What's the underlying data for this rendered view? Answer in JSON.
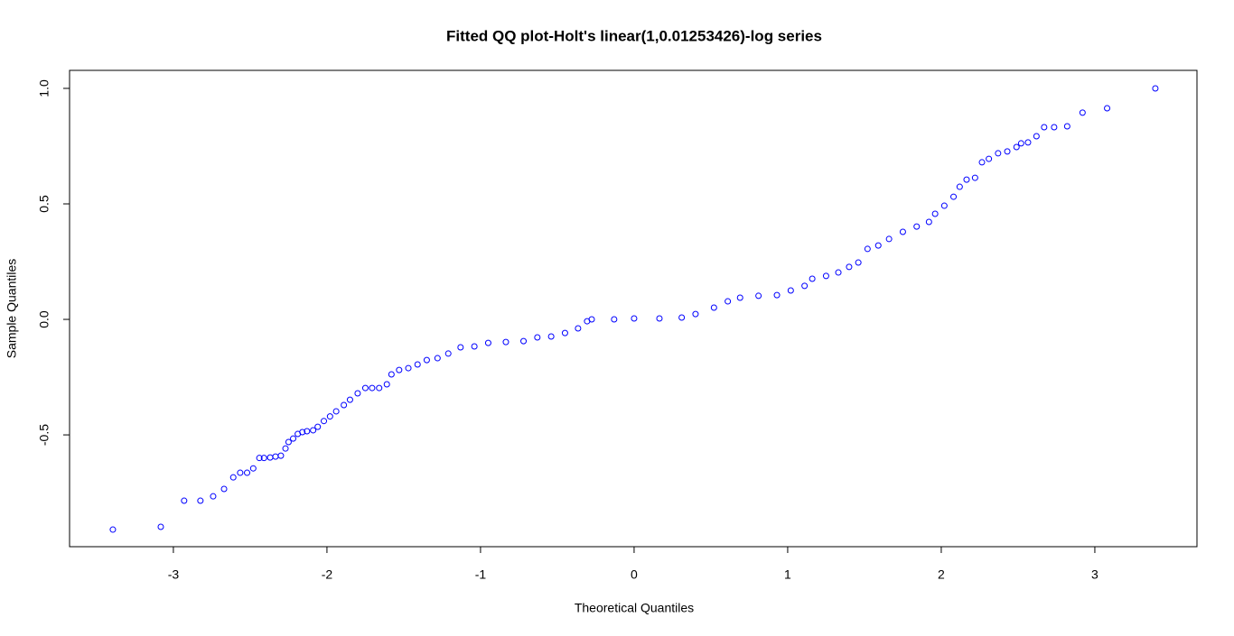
{
  "chart_data": {
    "type": "scatter",
    "title": "Fitted QQ plot-Holt's linear(1,0.01253426)-log series",
    "x_label": "Theoretical Quantiles",
    "y_label": "Sample Quantiles",
    "color": "#0000ff",
    "xlim": [
      -3.676,
      3.665
    ],
    "ylim": [
      -0.984,
      1.078
    ],
    "xticks": [
      -3,
      -2,
      -1,
      0,
      1,
      2,
      3
    ],
    "yticks": [
      -0.5,
      {
        "value": 0,
        "label": "0.0"
      },
      0.5,
      {
        "value": 1,
        "label": "1.0"
      }
    ],
    "x": [
      -3.394,
      -3.082,
      -2.93,
      -2.824,
      -2.741,
      -2.67,
      -2.61,
      -2.565,
      -2.52,
      -2.48,
      -2.44,
      -2.41,
      -2.37,
      -2.335,
      -2.3,
      -2.27,
      -2.25,
      -2.22,
      -2.19,
      -2.16,
      -2.13,
      -2.09,
      -2.06,
      -2.02,
      -1.98,
      -1.94,
      -1.89,
      -1.85,
      -1.8,
      -1.75,
      -1.706,
      -1.66,
      -1.61,
      -1.58,
      -1.53,
      -1.47,
      -1.41,
      -1.35,
      -1.28,
      -1.21,
      -1.13,
      -1.04,
      -0.95,
      -0.835,
      -0.72,
      -0.63,
      -0.54,
      -0.45,
      -0.365,
      -0.306,
      -0.276,
      -0.13,
      0,
      0.165,
      0.31,
      0.4,
      0.52,
      0.61,
      0.69,
      0.81,
      0.93,
      1.02,
      1.11,
      1.16,
      1.25,
      1.33,
      1.4,
      1.46,
      1.52,
      1.59,
      1.66,
      1.75,
      1.84,
      1.92,
      1.96,
      2.02,
      2.08,
      2.12,
      2.165,
      2.22,
      2.265,
      2.31,
      2.37,
      2.43,
      2.49,
      2.52,
      2.565,
      2.62,
      2.67,
      2.735,
      2.82,
      2.92,
      3.08,
      3.394
    ],
    "values": [
      -0.91,
      -0.898,
      -0.785,
      -0.785,
      -0.766,
      -0.734,
      -0.684,
      -0.664,
      -0.664,
      -0.645,
      -0.6,
      -0.6,
      -0.598,
      -0.594,
      -0.59,
      -0.559,
      -0.531,
      -0.516,
      -0.496,
      -0.488,
      -0.484,
      -0.48,
      -0.465,
      -0.44,
      -0.42,
      -0.398,
      -0.371,
      -0.348,
      -0.32,
      -0.297,
      -0.297,
      -0.297,
      -0.281,
      -0.238,
      -0.219,
      -0.211,
      -0.195,
      -0.176,
      -0.168,
      -0.148,
      -0.121,
      -0.117,
      -0.102,
      -0.098,
      -0.094,
      -0.078,
      -0.074,
      -0.059,
      -0.039,
      -0.008,
      0,
      0,
      0.004,
      0.004,
      0.008,
      0.023,
      0.051,
      0.078,
      0.094,
      0.102,
      0.105,
      0.125,
      0.145,
      0.176,
      0.188,
      0.203,
      0.227,
      0.246,
      0.305,
      0.32,
      0.348,
      0.379,
      0.402,
      0.422,
      0.457,
      0.492,
      0.531,
      0.574,
      0.605,
      0.613,
      0.68,
      0.695,
      0.719,
      0.727,
      0.746,
      0.762,
      0.766,
      0.793,
      0.832,
      0.832,
      0.836,
      0.895,
      0.914,
      1.0
    ]
  }
}
